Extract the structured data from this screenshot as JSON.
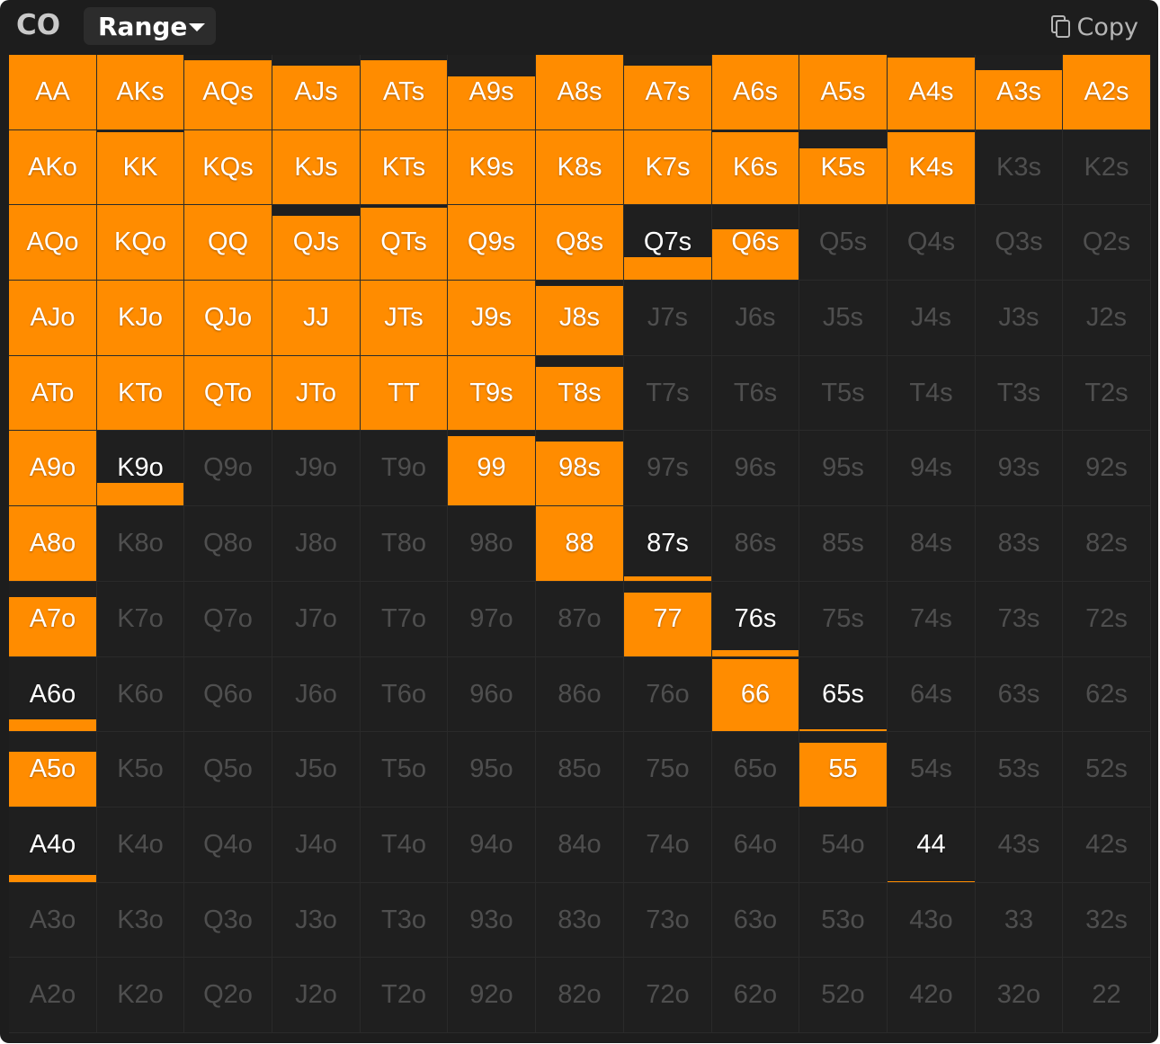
{
  "header": {
    "position": "CO",
    "range_label": "Range",
    "copy_label": "Copy"
  },
  "colors": {
    "raise": "#ff8c00",
    "cell_bg": "#1f1f1f",
    "panel_bg": "#1d1d1d",
    "inactive_text": "#4f4f4f",
    "active_text": "#ffffff"
  },
  "grid": {
    "hands": [
      [
        "AA",
        "AKs",
        "AQs",
        "AJs",
        "ATs",
        "A9s",
        "A8s",
        "A7s",
        "A6s",
        "A5s",
        "A4s",
        "A3s",
        "A2s"
      ],
      [
        "AKo",
        "KK",
        "KQs",
        "KJs",
        "KTs",
        "K9s",
        "K8s",
        "K7s",
        "K6s",
        "K5s",
        "K4s",
        "K3s",
        "K2s"
      ],
      [
        "AQo",
        "KQo",
        "QQ",
        "QJs",
        "QTs",
        "Q9s",
        "Q8s",
        "Q7s",
        "Q6s",
        "Q5s",
        "Q4s",
        "Q3s",
        "Q2s"
      ],
      [
        "AJo",
        "KJo",
        "QJo",
        "JJ",
        "JTs",
        "J9s",
        "J8s",
        "J7s",
        "J6s",
        "J5s",
        "J4s",
        "J3s",
        "J2s"
      ],
      [
        "ATo",
        "KTo",
        "QTo",
        "JTo",
        "TT",
        "T9s",
        "T8s",
        "T7s",
        "T6s",
        "T5s",
        "T4s",
        "T3s",
        "T2s"
      ],
      [
        "A9o",
        "K9o",
        "Q9o",
        "J9o",
        "T9o",
        "99",
        "98s",
        "97s",
        "96s",
        "95s",
        "94s",
        "93s",
        "92s"
      ],
      [
        "A8o",
        "K8o",
        "Q8o",
        "J8o",
        "T8o",
        "98o",
        "88",
        "87s",
        "86s",
        "85s",
        "84s",
        "83s",
        "82s"
      ],
      [
        "A7o",
        "K7o",
        "Q7o",
        "J7o",
        "T7o",
        "97o",
        "87o",
        "77",
        "76s",
        "75s",
        "74s",
        "73s",
        "72s"
      ],
      [
        "A6o",
        "K6o",
        "Q6o",
        "J6o",
        "T6o",
        "96o",
        "86o",
        "76o",
        "66",
        "65s",
        "64s",
        "63s",
        "62s"
      ],
      [
        "A5o",
        "K5o",
        "Q5o",
        "J5o",
        "T5o",
        "95o",
        "85o",
        "75o",
        "65o",
        "55",
        "54s",
        "53s",
        "52s"
      ],
      [
        "A4o",
        "K4o",
        "Q4o",
        "J4o",
        "T4o",
        "94o",
        "84o",
        "74o",
        "64o",
        "54o",
        "44",
        "43s",
        "42s"
      ],
      [
        "A3o",
        "K3o",
        "Q3o",
        "J3o",
        "T3o",
        "93o",
        "83o",
        "73o",
        "63o",
        "53o",
        "43o",
        "33",
        "32s"
      ],
      [
        "A2o",
        "K2o",
        "Q2o",
        "J2o",
        "T2o",
        "92o",
        "82o",
        "72o",
        "62o",
        "52o",
        "42o",
        "32o",
        "22"
      ]
    ],
    "frequencies": [
      [
        1.0,
        1.0,
        0.93,
        0.85,
        0.93,
        0.71,
        1.0,
        0.85,
        1.0,
        1.0,
        0.96,
        0.8,
        1.0
      ],
      [
        1.0,
        0.97,
        1.0,
        1.0,
        1.0,
        1.0,
        1.0,
        1.0,
        0.97,
        0.76,
        0.97,
        0.0,
        0.0
      ],
      [
        1.0,
        1.0,
        1.0,
        0.85,
        0.97,
        1.0,
        1.0,
        0.3,
        0.68,
        0.0,
        0.0,
        0.0,
        0.0
      ],
      [
        1.0,
        1.0,
        1.0,
        1.0,
        1.0,
        1.0,
        0.93,
        0.0,
        0.0,
        0.0,
        0.0,
        0.0,
        0.0
      ],
      [
        1.0,
        1.0,
        1.0,
        1.0,
        1.0,
        1.0,
        0.85,
        0.0,
        0.0,
        0.0,
        0.0,
        0.0,
        0.0
      ],
      [
        1.0,
        0.3,
        0.0,
        0.0,
        0.0,
        0.93,
        0.85,
        0.0,
        0.0,
        0.0,
        0.0,
        0.0,
        0.0
      ],
      [
        1.0,
        0.0,
        0.0,
        0.0,
        0.0,
        0.0,
        1.0,
        0.06,
        0.0,
        0.0,
        0.0,
        0.0,
        0.0
      ],
      [
        0.8,
        0.0,
        0.0,
        0.0,
        0.0,
        0.0,
        0.0,
        0.85,
        0.08,
        0.0,
        0.0,
        0.0,
        0.0
      ],
      [
        0.16,
        0.0,
        0.0,
        0.0,
        0.0,
        0.0,
        0.0,
        0.0,
        0.97,
        0.02,
        0.0,
        0.0,
        0.0
      ],
      [
        0.73,
        0.0,
        0.0,
        0.0,
        0.0,
        0.0,
        0.0,
        0.0,
        0.0,
        0.85,
        0.0,
        0.0,
        0.0
      ],
      [
        0.1,
        0.0,
        0.0,
        0.0,
        0.0,
        0.0,
        0.0,
        0.0,
        0.0,
        0.0,
        0.01,
        0.0,
        0.0
      ],
      [
        0.0,
        0.0,
        0.0,
        0.0,
        0.0,
        0.0,
        0.0,
        0.0,
        0.0,
        0.0,
        0.0,
        0.0,
        0.0
      ],
      [
        0.0,
        0.0,
        0.0,
        0.0,
        0.0,
        0.0,
        0.0,
        0.0,
        0.0,
        0.0,
        0.0,
        0.0,
        0.0
      ]
    ]
  }
}
